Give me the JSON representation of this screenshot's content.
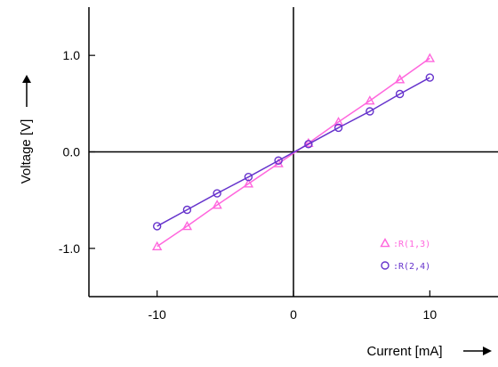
{
  "chart_data": {
    "type": "line",
    "xlabel": "Current [mA]",
    "ylabel": "Voltage [V]",
    "xlim": [
      -15,
      15
    ],
    "ylim": [
      -1.5,
      1.5
    ],
    "x_ticks": [
      -10,
      0,
      10
    ],
    "x_tick_labels": [
      "-10",
      "0",
      "10"
    ],
    "y_ticks": [
      -1.0,
      0.0,
      1.0
    ],
    "y_tick_labels": [
      "-1.0",
      "0.0",
      "1.0"
    ],
    "grid": false,
    "legend_position": "bottom-right",
    "series": [
      {
        "name": ":R(1,3)",
        "marker": "triangle",
        "color": "#ff66dd",
        "x": [
          -10,
          -7.8,
          -5.6,
          -3.3,
          -1.1,
          1.1,
          3.3,
          5.6,
          7.8,
          10
        ],
        "y": [
          -0.98,
          -0.77,
          -0.55,
          -0.33,
          -0.12,
          0.09,
          0.31,
          0.53,
          0.75,
          0.97
        ]
      },
      {
        "name": ":R(2,4)",
        "marker": "circle",
        "color": "#6633cc",
        "x": [
          -10,
          -7.8,
          -5.6,
          -3.3,
          -1.1,
          1.1,
          3.3,
          5.6,
          7.8,
          10
        ],
        "y": [
          -0.77,
          -0.6,
          -0.43,
          -0.26,
          -0.09,
          0.08,
          0.25,
          0.42,
          0.6,
          0.77
        ]
      }
    ]
  }
}
